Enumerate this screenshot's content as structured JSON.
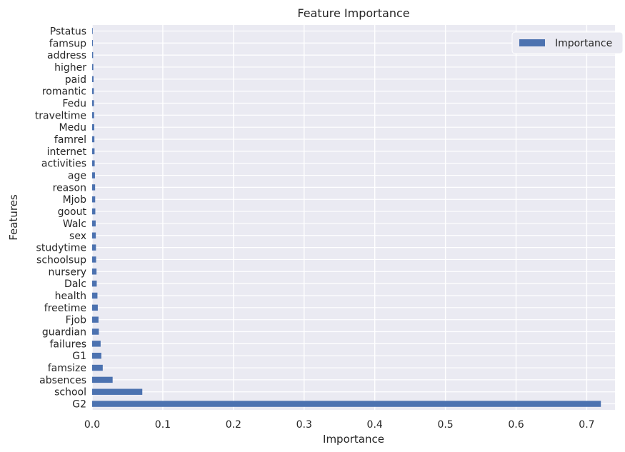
{
  "chart_data": {
    "type": "bar",
    "orientation": "horizontal",
    "title": "Feature Importance",
    "xlabel": "Importance",
    "ylabel": "Features",
    "xlim": [
      0.0,
      0.74
    ],
    "xticks": [
      "0.0",
      "0.1",
      "0.2",
      "0.3",
      "0.4",
      "0.5",
      "0.6",
      "0.7"
    ],
    "grid": true,
    "legend_position": "top-right",
    "categories": [
      "G2",
      "school",
      "absences",
      "famsize",
      "G1",
      "failures",
      "guardian",
      "Fjob",
      "freetime",
      "health",
      "Dalc",
      "nursery",
      "schoolsup",
      "studytime",
      "sex",
      "Walc",
      "goout",
      "Mjob",
      "reason",
      "age",
      "activities",
      "internet",
      "famrel",
      "Medu",
      "traveltime",
      "Fedu",
      "romantic",
      "paid",
      "higher",
      "address",
      "famsup",
      "Pstatus"
    ],
    "series": [
      {
        "name": "Importance",
        "color": "#4c72b0",
        "values": [
          0.72,
          0.071,
          0.029,
          0.015,
          0.013,
          0.012,
          0.0095,
          0.009,
          0.008,
          0.0075,
          0.0065,
          0.0062,
          0.0056,
          0.0054,
          0.0052,
          0.005,
          0.0045,
          0.0043,
          0.0042,
          0.004,
          0.0036,
          0.0034,
          0.0032,
          0.003,
          0.0028,
          0.0026,
          0.0024,
          0.002,
          0.0017,
          0.0014,
          0.0011,
          0.0008
        ]
      }
    ],
    "colors": {
      "plot_background": "#eaeaf2",
      "grid": "#ffffff",
      "bar": "#4c72b0"
    }
  }
}
